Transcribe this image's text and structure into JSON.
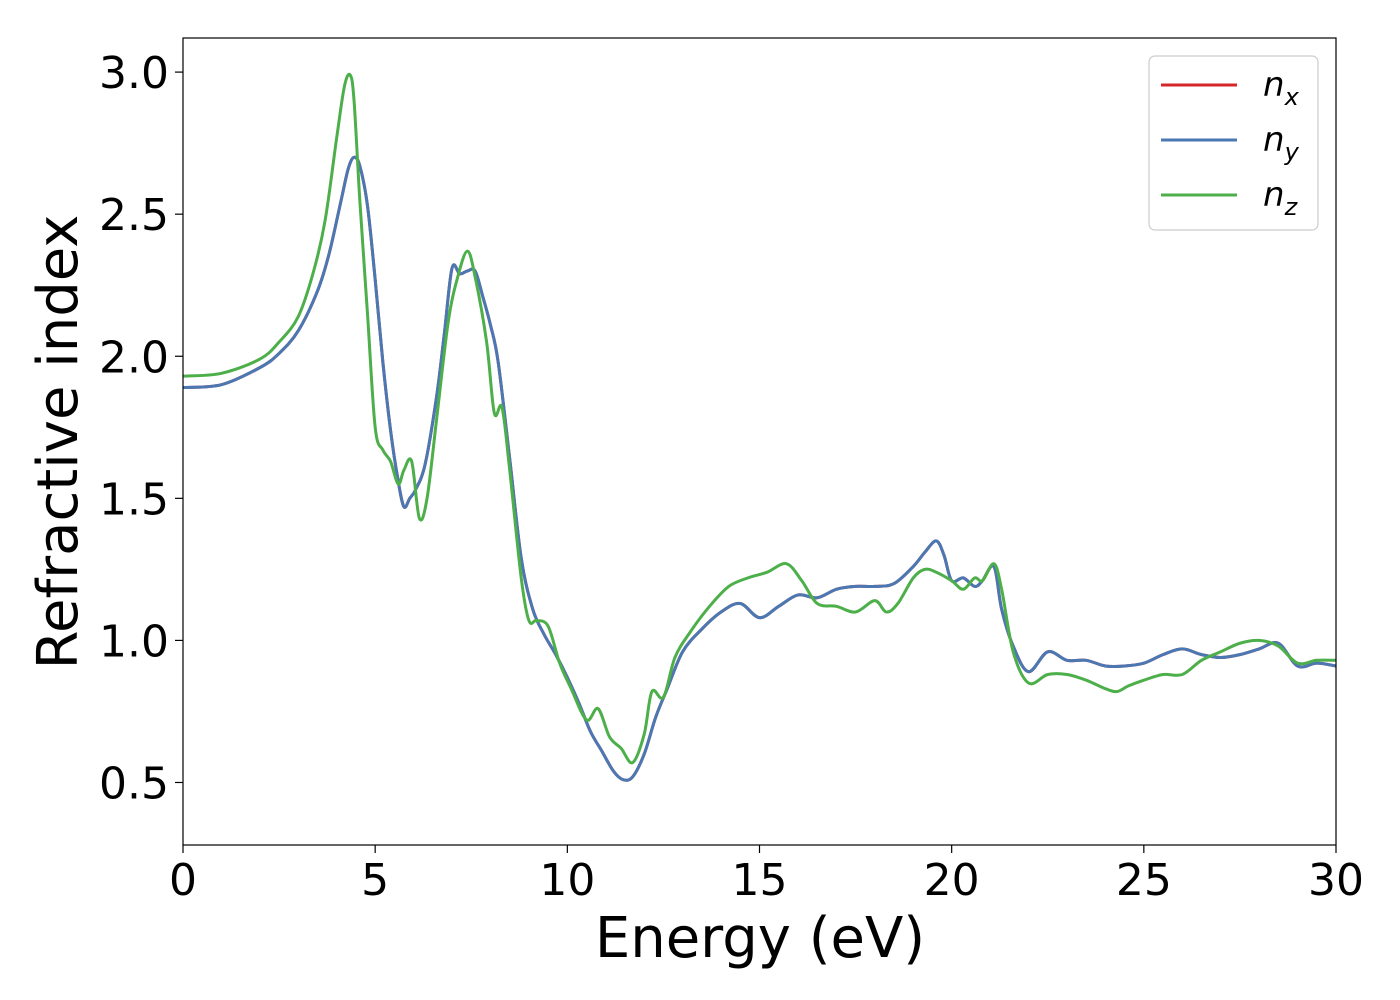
{
  "chart_data": {
    "type": "line",
    "xlabel": "Energy (eV)",
    "ylabel": "Refractive index",
    "xlim": [
      0,
      30
    ],
    "ylim": [
      0.28,
      3.12
    ],
    "x_ticks": [
      0,
      5,
      10,
      15,
      20,
      25,
      30
    ],
    "x_tick_labels": [
      "0",
      "5",
      "10",
      "15",
      "20",
      "25",
      "30"
    ],
    "y_ticks": [
      0.5,
      1.0,
      1.5,
      2.0,
      2.5,
      3.0
    ],
    "y_tick_labels": [
      "0.5",
      "1.0",
      "1.5",
      "2.0",
      "2.5",
      "3.0"
    ],
    "grid": false,
    "legend_position": "top-right",
    "series": [
      {
        "name": "n",
        "subscript": "x",
        "color": "#d62728",
        "x": [
          0,
          1,
          2,
          2.5,
          3,
          3.5,
          3.8,
          4.1,
          4.3,
          4.45,
          4.6,
          4.8,
          5.0,
          5.2,
          5.4,
          5.6,
          5.75,
          5.9,
          6.05,
          6.3,
          6.6,
          6.8,
          7.0,
          7.2,
          7.4,
          7.6,
          7.8,
          8.0,
          8.2,
          8.5,
          8.8,
          9.1,
          9.4,
          9.7,
          10.0,
          10.3,
          10.6,
          10.9,
          11.2,
          11.45,
          11.7,
          12.0,
          12.3,
          12.6,
          13.0,
          13.5,
          14.0,
          14.5,
          15.0,
          15.5,
          16.0,
          16.5,
          17.0,
          17.5,
          18.0,
          18.5,
          19.0,
          19.3,
          19.6,
          19.8,
          20.0,
          20.3,
          20.6,
          20.8,
          21.1,
          21.3,
          21.6,
          22.0,
          22.5,
          23.0,
          23.5,
          24.0,
          24.5,
          25.0,
          25.5,
          26.0,
          26.5,
          27.0,
          27.5,
          28.0,
          28.5,
          29.0,
          29.5,
          30.0
        ],
        "values": [
          1.89,
          1.9,
          1.96,
          2.01,
          2.09,
          2.23,
          2.36,
          2.54,
          2.66,
          2.7,
          2.67,
          2.53,
          2.27,
          1.98,
          1.74,
          1.56,
          1.47,
          1.5,
          1.53,
          1.62,
          1.86,
          2.08,
          2.31,
          2.29,
          2.3,
          2.3,
          2.21,
          2.11,
          1.98,
          1.64,
          1.29,
          1.11,
          1.02,
          0.95,
          0.87,
          0.78,
          0.68,
          0.61,
          0.54,
          0.51,
          0.52,
          0.6,
          0.73,
          0.83,
          0.96,
          1.04,
          1.1,
          1.13,
          1.08,
          1.12,
          1.16,
          1.15,
          1.18,
          1.19,
          1.19,
          1.2,
          1.26,
          1.31,
          1.35,
          1.3,
          1.21,
          1.22,
          1.19,
          1.21,
          1.26,
          1.11,
          0.98,
          0.89,
          0.96,
          0.93,
          0.93,
          0.91,
          0.91,
          0.92,
          0.95,
          0.97,
          0.95,
          0.94,
          0.95,
          0.97,
          0.99,
          0.91,
          0.92,
          0.91
        ]
      },
      {
        "name": "n",
        "subscript": "y",
        "color": "#4a78b3",
        "x": [
          0,
          1,
          2,
          2.5,
          3,
          3.5,
          3.8,
          4.1,
          4.3,
          4.45,
          4.6,
          4.8,
          5.0,
          5.2,
          5.4,
          5.6,
          5.75,
          5.9,
          6.05,
          6.3,
          6.6,
          6.8,
          7.0,
          7.2,
          7.4,
          7.6,
          7.8,
          8.0,
          8.2,
          8.5,
          8.8,
          9.1,
          9.4,
          9.7,
          10.0,
          10.3,
          10.6,
          10.9,
          11.2,
          11.45,
          11.7,
          12.0,
          12.3,
          12.6,
          13.0,
          13.5,
          14.0,
          14.5,
          15.0,
          15.5,
          16.0,
          16.5,
          17.0,
          17.5,
          18.0,
          18.5,
          19.0,
          19.3,
          19.6,
          19.8,
          20.0,
          20.3,
          20.6,
          20.8,
          21.1,
          21.3,
          21.6,
          22.0,
          22.5,
          23.0,
          23.5,
          24.0,
          24.5,
          25.0,
          25.5,
          26.0,
          26.5,
          27.0,
          27.5,
          28.0,
          28.5,
          29.0,
          29.5,
          30.0
        ],
        "values": [
          1.89,
          1.9,
          1.96,
          2.01,
          2.09,
          2.23,
          2.36,
          2.54,
          2.66,
          2.7,
          2.67,
          2.53,
          2.27,
          1.98,
          1.74,
          1.56,
          1.47,
          1.5,
          1.53,
          1.62,
          1.86,
          2.08,
          2.31,
          2.29,
          2.3,
          2.3,
          2.21,
          2.11,
          1.98,
          1.64,
          1.29,
          1.11,
          1.02,
          0.95,
          0.87,
          0.78,
          0.68,
          0.61,
          0.54,
          0.51,
          0.52,
          0.6,
          0.73,
          0.83,
          0.96,
          1.04,
          1.1,
          1.13,
          1.08,
          1.12,
          1.16,
          1.15,
          1.18,
          1.19,
          1.19,
          1.2,
          1.26,
          1.31,
          1.35,
          1.3,
          1.21,
          1.22,
          1.19,
          1.21,
          1.26,
          1.11,
          0.98,
          0.89,
          0.96,
          0.93,
          0.93,
          0.91,
          0.91,
          0.92,
          0.95,
          0.97,
          0.95,
          0.94,
          0.95,
          0.97,
          0.99,
          0.91,
          0.92,
          0.91
        ]
      },
      {
        "name": "n",
        "subscript": "z",
        "color": "#4daf4a",
        "x": [
          0,
          1,
          2,
          2.5,
          3,
          3.4,
          3.7,
          4.0,
          4.2,
          4.35,
          4.45,
          4.6,
          4.8,
          5.0,
          5.2,
          5.4,
          5.6,
          5.75,
          5.95,
          6.15,
          6.35,
          6.6,
          6.9,
          7.15,
          7.4,
          7.6,
          7.9,
          8.1,
          8.3,
          8.5,
          8.8,
          9.0,
          9.2,
          9.5,
          9.8,
          10.1,
          10.5,
          10.8,
          11.1,
          11.4,
          11.7,
          12.0,
          12.2,
          12.5,
          12.8,
          13.2,
          13.7,
          14.2,
          14.7,
          15.2,
          15.7,
          16.1,
          16.5,
          17.0,
          17.5,
          18.0,
          18.3,
          18.6,
          19.0,
          19.3,
          19.6,
          20.0,
          20.3,
          20.6,
          20.8,
          21.1,
          21.3,
          21.6,
          22.0,
          22.5,
          23.0,
          23.5,
          24.0,
          24.3,
          24.6,
          25.0,
          25.5,
          26.0,
          26.5,
          27.0,
          27.5,
          28.0,
          28.5,
          29.0,
          29.5,
          30.0
        ],
        "values": [
          1.93,
          1.94,
          1.99,
          2.05,
          2.14,
          2.3,
          2.48,
          2.77,
          2.95,
          2.99,
          2.9,
          2.55,
          2.15,
          1.75,
          1.67,
          1.63,
          1.55,
          1.6,
          1.63,
          1.43,
          1.5,
          1.78,
          2.12,
          2.28,
          2.37,
          2.28,
          2.05,
          1.8,
          1.82,
          1.6,
          1.22,
          1.07,
          1.07,
          1.05,
          0.92,
          0.83,
          0.72,
          0.76,
          0.66,
          0.62,
          0.57,
          0.67,
          0.82,
          0.8,
          0.94,
          1.03,
          1.12,
          1.19,
          1.22,
          1.24,
          1.27,
          1.21,
          1.13,
          1.12,
          1.1,
          1.14,
          1.1,
          1.13,
          1.22,
          1.25,
          1.24,
          1.21,
          1.18,
          1.22,
          1.21,
          1.27,
          1.18,
          0.96,
          0.85,
          0.88,
          0.88,
          0.86,
          0.83,
          0.82,
          0.84,
          0.86,
          0.88,
          0.88,
          0.93,
          0.96,
          0.99,
          1.0,
          0.98,
          0.92,
          0.93,
          0.93
        ]
      }
    ]
  }
}
